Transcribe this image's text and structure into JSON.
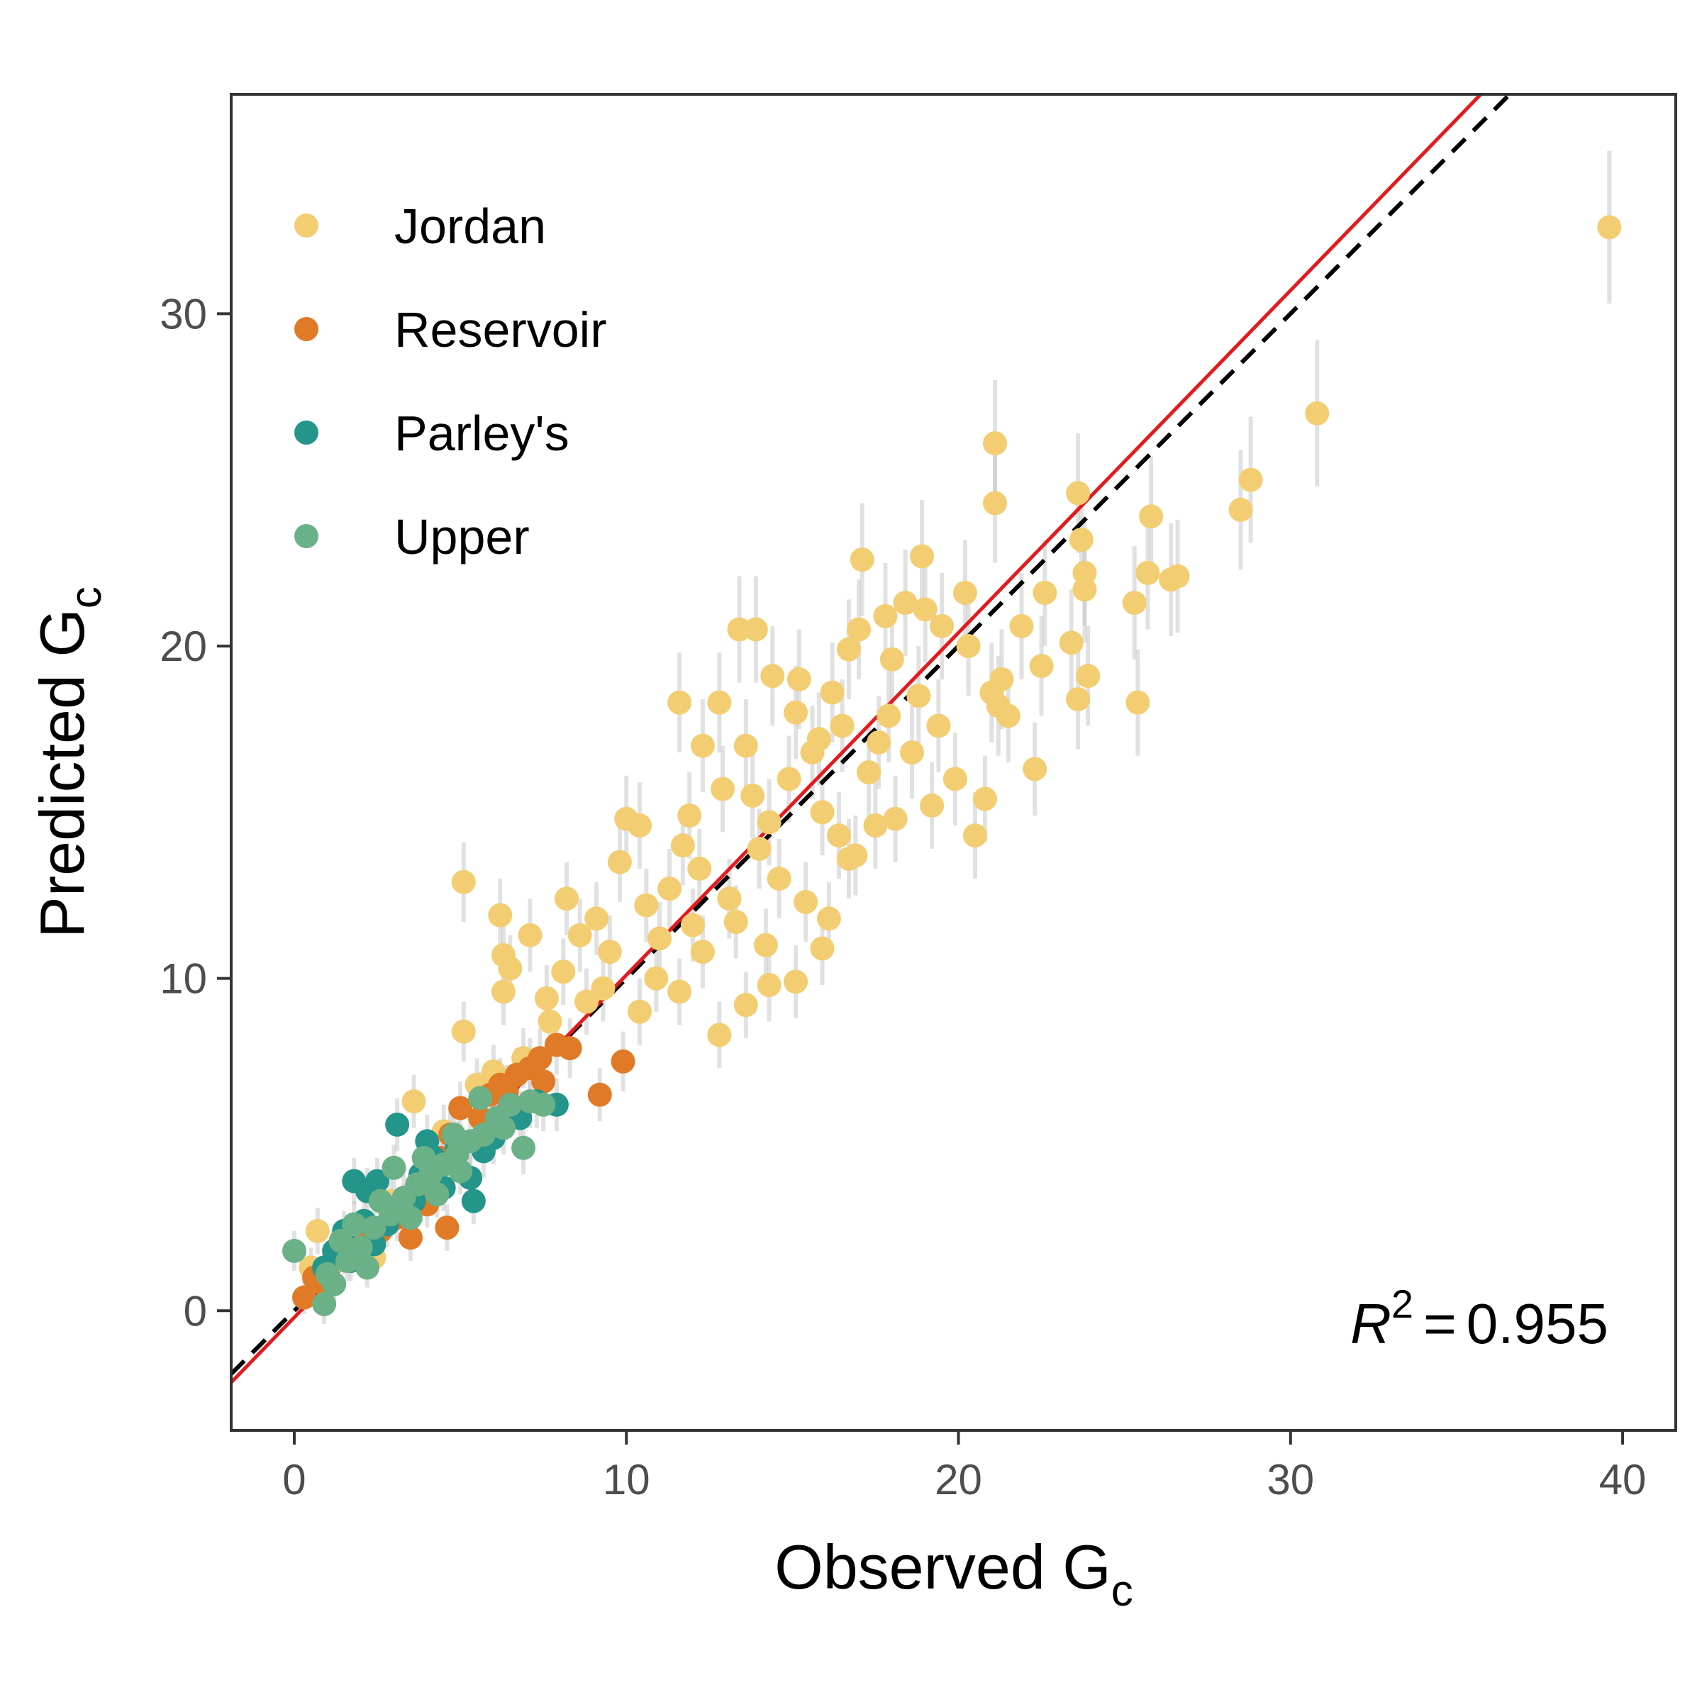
{
  "chart_data": {
    "type": "scatter",
    "xlabel": {
      "main": "Observed G",
      "sub": "c"
    },
    "ylabel": {
      "main": "Predicted G",
      "sub": "c"
    },
    "xlim": [
      -1.9,
      41.6
    ],
    "ylim": [
      -3.6,
      36.6
    ],
    "x_ticks": [
      0,
      10,
      20,
      30,
      40
    ],
    "x_tick_labels": [
      "0",
      "10",
      "20",
      "30",
      "40"
    ],
    "y_ticks": [
      0,
      10,
      20,
      30
    ],
    "y_tick_labels": [
      "0",
      "10",
      "20",
      "30"
    ],
    "grid": false,
    "legend_position": "top-left",
    "annotation": {
      "r_symbol": "R",
      "exponent": "2",
      "equals": "=",
      "value": "0.955"
    },
    "fit_line": {
      "slope": 1.03,
      "intercept": -0.2,
      "color": "#e41a1c",
      "style": "solid"
    },
    "identity_line": {
      "slope": 1.0,
      "intercept": 0.0,
      "color": "#000000",
      "style": "dashed"
    },
    "error_bar_color": "#c8c8c8",
    "series": [
      {
        "name": "Jordan",
        "color": "#f3cd72",
        "points": [
          [
            39.6,
            32.6,
            2.3
          ],
          [
            30.8,
            27.0,
            2.2
          ],
          [
            28.8,
            25.0,
            1.9
          ],
          [
            28.5,
            24.1,
            1.8
          ],
          [
            26.6,
            22.1,
            1.7
          ],
          [
            26.4,
            22.0,
            1.7
          ],
          [
            25.8,
            23.9,
            1.8
          ],
          [
            25.7,
            22.2,
            1.7
          ],
          [
            25.3,
            21.3,
            1.7
          ],
          [
            25.4,
            18.3,
            1.6
          ],
          [
            23.9,
            19.1,
            1.5
          ],
          [
            23.8,
            22.2,
            1.6
          ],
          [
            23.8,
            21.7,
            1.6
          ],
          [
            23.7,
            23.2,
            1.7
          ],
          [
            23.6,
            24.6,
            1.8
          ],
          [
            23.6,
            18.4,
            1.5
          ],
          [
            23.4,
            20.1,
            1.6
          ],
          [
            22.6,
            21.6,
            1.6
          ],
          [
            22.5,
            19.4,
            1.5
          ],
          [
            22.3,
            16.3,
            1.4
          ],
          [
            21.1,
            26.1,
            1.9
          ],
          [
            21.1,
            24.3,
            1.8
          ],
          [
            21.0,
            18.6,
            1.5
          ],
          [
            21.3,
            19.0,
            1.5
          ],
          [
            21.5,
            17.9,
            1.4
          ],
          [
            21.2,
            18.2,
            1.5
          ],
          [
            20.8,
            15.4,
            1.3
          ],
          [
            20.5,
            14.3,
            1.3
          ],
          [
            20.2,
            21.6,
            1.6
          ],
          [
            20.3,
            20.0,
            1.5
          ],
          [
            21.9,
            20.6,
            1.6
          ],
          [
            18.9,
            22.7,
            1.7
          ],
          [
            17.1,
            22.6,
            1.7
          ],
          [
            19.0,
            21.1,
            1.6
          ],
          [
            19.5,
            20.6,
            1.6
          ],
          [
            18.4,
            21.3,
            1.6
          ],
          [
            17.8,
            20.9,
            1.6
          ],
          [
            17.0,
            20.5,
            1.5
          ],
          [
            16.7,
            19.9,
            1.5
          ],
          [
            18.0,
            19.6,
            1.5
          ],
          [
            19.4,
            17.6,
            1.4
          ],
          [
            19.9,
            16.0,
            1.4
          ],
          [
            19.2,
            15.2,
            1.3
          ],
          [
            18.6,
            16.8,
            1.4
          ],
          [
            17.6,
            17.1,
            1.4
          ],
          [
            16.5,
            17.6,
            1.4
          ],
          [
            15.8,
            17.2,
            1.4
          ],
          [
            15.1,
            18.0,
            1.4
          ],
          [
            14.4,
            19.1,
            1.5
          ],
          [
            15.2,
            19.0,
            1.5
          ],
          [
            14.9,
            16.0,
            1.3
          ],
          [
            15.9,
            15.0,
            1.3
          ],
          [
            16.4,
            14.3,
            1.3
          ],
          [
            16.9,
            13.7,
            1.2
          ],
          [
            17.3,
            16.2,
            1.4
          ],
          [
            18.1,
            14.8,
            1.3
          ],
          [
            13.4,
            20.5,
            1.6
          ],
          [
            13.9,
            20.5,
            1.6
          ],
          [
            11.6,
            18.3,
            1.5
          ],
          [
            12.8,
            18.3,
            1.5
          ],
          [
            13.6,
            17.0,
            1.4
          ],
          [
            12.3,
            17.0,
            1.4
          ],
          [
            12.9,
            15.7,
            1.3
          ],
          [
            13.8,
            15.5,
            1.3
          ],
          [
            11.9,
            14.9,
            1.3
          ],
          [
            11.7,
            14.0,
            1.2
          ],
          [
            12.2,
            13.3,
            1.2
          ],
          [
            14.3,
            14.7,
            1.3
          ],
          [
            14.6,
            13.0,
            1.2
          ],
          [
            13.1,
            12.4,
            1.2
          ],
          [
            11.3,
            12.7,
            1.2
          ],
          [
            10.6,
            12.2,
            1.1
          ],
          [
            11.0,
            11.2,
            1.1
          ],
          [
            10.0,
            14.8,
            1.3
          ],
          [
            10.4,
            14.6,
            1.3
          ],
          [
            9.8,
            13.5,
            1.2
          ],
          [
            12.3,
            10.8,
            1.1
          ],
          [
            13.6,
            9.2,
            1.0
          ],
          [
            12.8,
            8.3,
            1.0
          ],
          [
            14.3,
            9.8,
            1.1
          ],
          [
            15.1,
            9.9,
            1.1
          ],
          [
            15.9,
            10.9,
            1.1
          ],
          [
            16.1,
            11.8,
            1.1
          ],
          [
            15.4,
            12.3,
            1.2
          ],
          [
            14.2,
            11.0,
            1.1
          ],
          [
            13.3,
            11.7,
            1.1
          ],
          [
            16.7,
            13.6,
            1.2
          ],
          [
            17.5,
            14.6,
            1.3
          ],
          [
            9.1,
            11.8,
            1.1
          ],
          [
            9.5,
            10.8,
            1.1
          ],
          [
            8.6,
            11.3,
            1.1
          ],
          [
            8.2,
            12.4,
            1.1
          ],
          [
            9.3,
            9.7,
            1.0
          ],
          [
            8.8,
            9.3,
            1.0
          ],
          [
            8.1,
            10.2,
            1.0
          ],
          [
            7.6,
            9.4,
            1.0
          ],
          [
            7.1,
            11.3,
            1.1
          ],
          [
            6.2,
            11.9,
            1.1
          ],
          [
            6.3,
            10.7,
            1.0
          ],
          [
            6.5,
            10.3,
            1.0
          ],
          [
            6.3,
            9.6,
            1.0
          ],
          [
            5.1,
            12.9,
            1.2
          ],
          [
            5.1,
            8.4,
            0.9
          ],
          [
            10.4,
            9.0,
            1.0
          ],
          [
            10.9,
            10.0,
            1.0
          ],
          [
            11.6,
            9.6,
            1.0
          ],
          [
            12.0,
            11.6,
            1.1
          ],
          [
            7.7,
            8.7,
            0.9
          ],
          [
            6.9,
            7.6,
            0.9
          ],
          [
            6.0,
            7.2,
            0.8
          ],
          [
            5.5,
            6.8,
            0.8
          ],
          [
            3.6,
            6.3,
            0.8
          ],
          [
            4.5,
            5.4,
            0.8
          ],
          [
            2.9,
            3.3,
            0.7
          ],
          [
            1.9,
            2.1,
            0.7
          ],
          [
            1.1,
            1.4,
            0.6
          ],
          [
            0.7,
            2.4,
            0.7
          ],
          [
            0.5,
            1.3,
            0.6
          ],
          [
            2.4,
            1.6,
            0.6
          ],
          [
            16.2,
            18.6,
            1.5
          ],
          [
            18.8,
            18.5,
            1.5
          ],
          [
            14.0,
            13.9,
            1.2
          ],
          [
            15.6,
            16.8,
            1.4
          ],
          [
            17.9,
            17.9,
            1.4
          ]
        ]
      },
      {
        "name": "Reservoir",
        "color": "#e07a26",
        "points": [
          [
            9.9,
            7.5,
            0.9
          ],
          [
            9.2,
            6.5,
            0.8
          ],
          [
            8.3,
            7.9,
            0.9
          ],
          [
            7.9,
            8.0,
            0.9
          ],
          [
            7.4,
            7.6,
            0.9
          ],
          [
            7.1,
            7.3,
            0.9
          ],
          [
            6.7,
            7.1,
            0.8
          ],
          [
            6.2,
            6.8,
            0.8
          ],
          [
            5.9,
            6.5,
            0.8
          ],
          [
            5.6,
            5.8,
            0.8
          ],
          [
            5.0,
            6.1,
            0.8
          ],
          [
            4.7,
            5.3,
            0.8
          ],
          [
            4.4,
            4.6,
            0.7
          ],
          [
            4.6,
            2.5,
            0.7
          ],
          [
            4.0,
            3.2,
            0.7
          ],
          [
            3.5,
            2.2,
            0.7
          ],
          [
            3.1,
            2.8,
            0.7
          ],
          [
            2.6,
            2.4,
            0.6
          ],
          [
            2.0,
            2.1,
            0.6
          ],
          [
            1.5,
            1.7,
            0.6
          ],
          [
            1.0,
            1.3,
            0.6
          ],
          [
            0.6,
            1.0,
            0.6
          ],
          [
            0.3,
            0.4,
            0.5
          ],
          [
            0.9,
            0.8,
            0.6
          ],
          [
            6.4,
            6.6,
            0.8
          ],
          [
            7.5,
            6.9,
            0.8
          ]
        ]
      },
      {
        "name": "Parley's",
        "color": "#23958a",
        "points": [
          [
            3.1,
            5.6,
            0.8
          ],
          [
            1.8,
            3.9,
            0.7
          ],
          [
            2.5,
            3.9,
            0.7
          ],
          [
            2.2,
            3.6,
            0.7
          ],
          [
            4.2,
            4.6,
            0.7
          ],
          [
            3.8,
            4.1,
            0.7
          ],
          [
            4.9,
            4.9,
            0.8
          ],
          [
            5.3,
            4.0,
            0.7
          ],
          [
            6.0,
            5.2,
            0.8
          ],
          [
            6.8,
            5.8,
            0.8
          ],
          [
            7.3,
            6.3,
            0.8
          ],
          [
            7.9,
            6.2,
            0.8
          ],
          [
            5.4,
            3.3,
            0.7
          ],
          [
            3.3,
            3.1,
            0.7
          ],
          [
            2.8,
            2.6,
            0.7
          ],
          [
            2.1,
            2.7,
            0.7
          ],
          [
            1.5,
            2.4,
            0.6
          ],
          [
            1.2,
            1.8,
            0.6
          ],
          [
            0.9,
            1.3,
            0.6
          ],
          [
            3.6,
            3.3,
            0.7
          ],
          [
            4.5,
            3.7,
            0.7
          ],
          [
            2.4,
            2.0,
            0.6
          ],
          [
            1.7,
            1.5,
            0.6
          ],
          [
            6.5,
            6.0,
            0.8
          ],
          [
            5.7,
            4.8,
            0.8
          ],
          [
            4.0,
            5.1,
            0.8
          ]
        ]
      },
      {
        "name": "Upper",
        "color": "#6ab188",
        "points": [
          [
            0.0,
            1.8,
            0.6
          ],
          [
            0.9,
            0.2,
            0.6
          ],
          [
            1.2,
            0.8,
            0.6
          ],
          [
            1.6,
            1.5,
            0.6
          ],
          [
            2.0,
            1.9,
            0.6
          ],
          [
            2.4,
            2.5,
            0.7
          ],
          [
            2.9,
            2.9,
            0.7
          ],
          [
            3.3,
            3.4,
            0.7
          ],
          [
            3.7,
            3.8,
            0.7
          ],
          [
            4.1,
            4.1,
            0.7
          ],
          [
            4.5,
            4.4,
            0.7
          ],
          [
            4.9,
            4.7,
            0.8
          ],
          [
            5.3,
            5.1,
            0.8
          ],
          [
            5.7,
            5.3,
            0.8
          ],
          [
            6.1,
            5.8,
            0.8
          ],
          [
            6.5,
            6.2,
            0.8
          ],
          [
            7.1,
            6.3,
            0.8
          ],
          [
            7.5,
            6.2,
            0.8
          ],
          [
            6.9,
            4.9,
            0.8
          ],
          [
            5.6,
            6.4,
            0.8
          ],
          [
            3.0,
            4.3,
            0.7
          ],
          [
            2.6,
            3.3,
            0.7
          ],
          [
            1.8,
            2.6,
            0.7
          ],
          [
            1.4,
            2.1,
            0.6
          ],
          [
            3.5,
            2.8,
            0.7
          ],
          [
            4.3,
            3.5,
            0.7
          ],
          [
            4.8,
            5.3,
            0.8
          ],
          [
            2.2,
            1.3,
            0.6
          ],
          [
            1.0,
            1.1,
            0.6
          ],
          [
            3.9,
            4.6,
            0.7
          ],
          [
            5.0,
            4.2,
            0.7
          ],
          [
            6.3,
            5.5,
            0.8
          ]
        ]
      }
    ]
  }
}
